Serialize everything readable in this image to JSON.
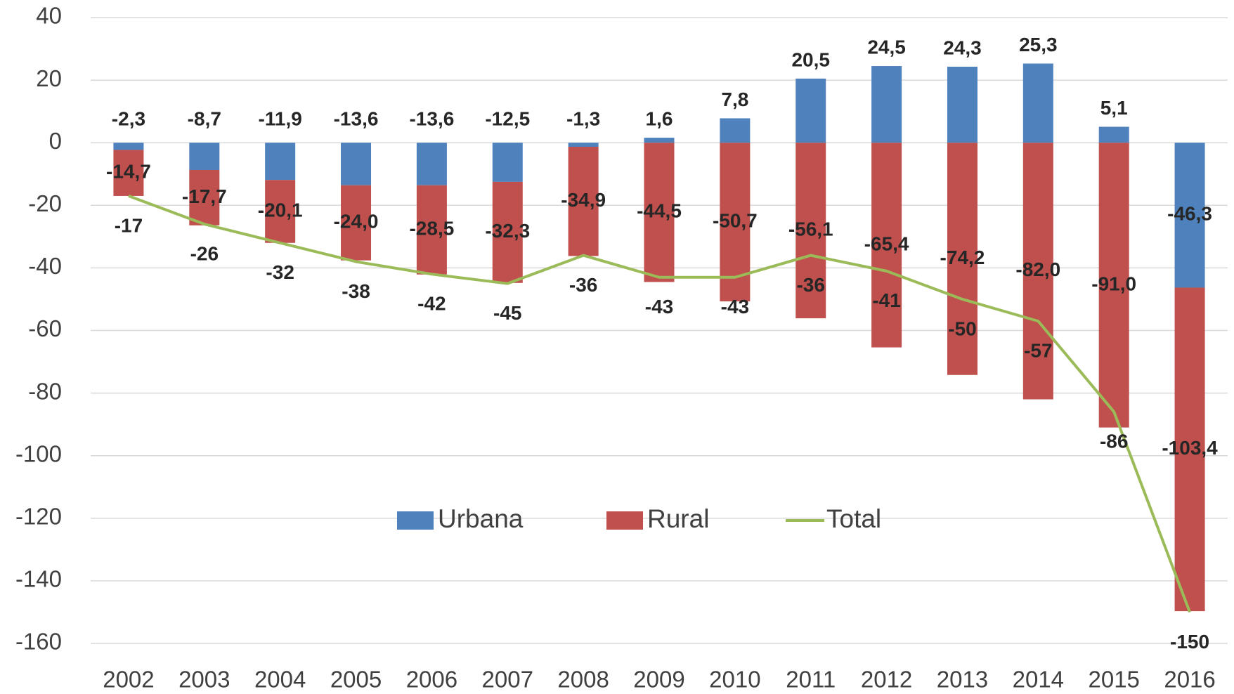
{
  "chart_data": {
    "type": "bar",
    "categories": [
      "2002",
      "2003",
      "2004",
      "2005",
      "2006",
      "2007",
      "2008",
      "2009",
      "2010",
      "2011",
      "2012",
      "2013",
      "2014",
      "2015",
      "2016"
    ],
    "series": [
      {
        "name": "Urbana",
        "color": "#4f81bd",
        "values": [
          -2.3,
          -8.7,
          -11.9,
          -13.6,
          -13.6,
          -12.5,
          -1.3,
          1.6,
          7.8,
          20.5,
          24.5,
          24.3,
          25.3,
          5.1,
          -46.3
        ],
        "value_labels": [
          "-2,3",
          "-8,7",
          "-11,9",
          "-13,6",
          "-13,6",
          "-12,5",
          "-1,3",
          "1,6",
          "7,8",
          "20,5",
          "24,5",
          "24,3",
          "25,3",
          "5,1",
          "-46,3"
        ]
      },
      {
        "name": "Rural",
        "color": "#c0504d",
        "values": [
          -14.7,
          -17.7,
          -20.1,
          -24.0,
          -28.5,
          -32.3,
          -34.9,
          -44.5,
          -50.7,
          -56.1,
          -65.4,
          -74.2,
          -82.0,
          -91.0,
          -103.4
        ],
        "value_labels": [
          "-14,7",
          "-17,7",
          "-20,1",
          "-24,0",
          "-28,5",
          "-32,3",
          "-34,9",
          "-44,5",
          "-50,7",
          "-56,1",
          "-65,4",
          "-74,2",
          "-82,0",
          "-91,0",
          "-103,4"
        ]
      },
      {
        "name": "Total",
        "color": "#9bbb59",
        "type": "line",
        "values": [
          -17,
          -26,
          -32,
          -38,
          -42,
          -45,
          -36,
          -43,
          -43,
          -36,
          -41,
          -50,
          -57,
          -86,
          -150
        ]
      }
    ],
    "ylim": [
      -160,
      40
    ],
    "yticks": [
      -160,
      -140,
      -120,
      -100,
      -80,
      -60,
      -40,
      -20,
      0,
      20,
      40
    ],
    "grid": true,
    "legend": "center"
  }
}
